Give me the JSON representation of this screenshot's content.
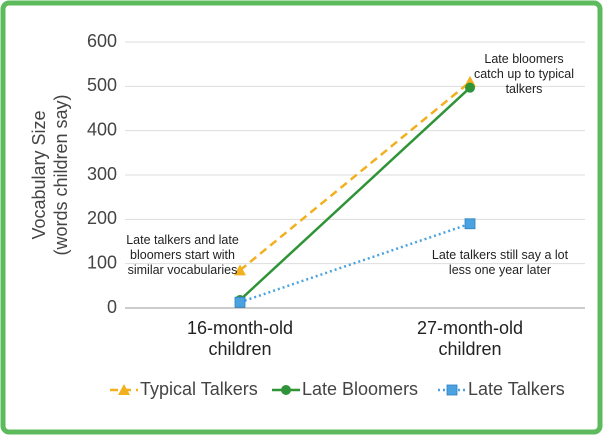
{
  "chart_data": {
    "type": "line",
    "ylabel": [
      "Vocabulary Size",
      "(words children say)"
    ],
    "categories": [
      "16-month-old children",
      "27-month-old children"
    ],
    "series": [
      {
        "name": "Typical Talkers",
        "color": "#f2b01e",
        "dash": "dashed",
        "marker": "triangle",
        "values": [
          85,
          510
        ]
      },
      {
        "name": "Late Bloomers",
        "color": "#2e9437",
        "dash": "solid",
        "marker": "circle",
        "values": [
          18,
          497
        ]
      },
      {
        "name": "Late Talkers",
        "color": "#4aa3e0",
        "dash": "dotted",
        "marker": "square",
        "values": [
          13,
          190
        ]
      }
    ],
    "ylim": [
      0,
      600
    ],
    "yticks": [
      0,
      100,
      200,
      300,
      400,
      500,
      600
    ],
    "grid": true,
    "legend": "bottom",
    "annotations": [
      "Late bloomers catch up to typical talkers",
      "Late talkers and late bloomers start with similar vocabularies",
      "Late talkers still say a lot less one year later"
    ]
  }
}
